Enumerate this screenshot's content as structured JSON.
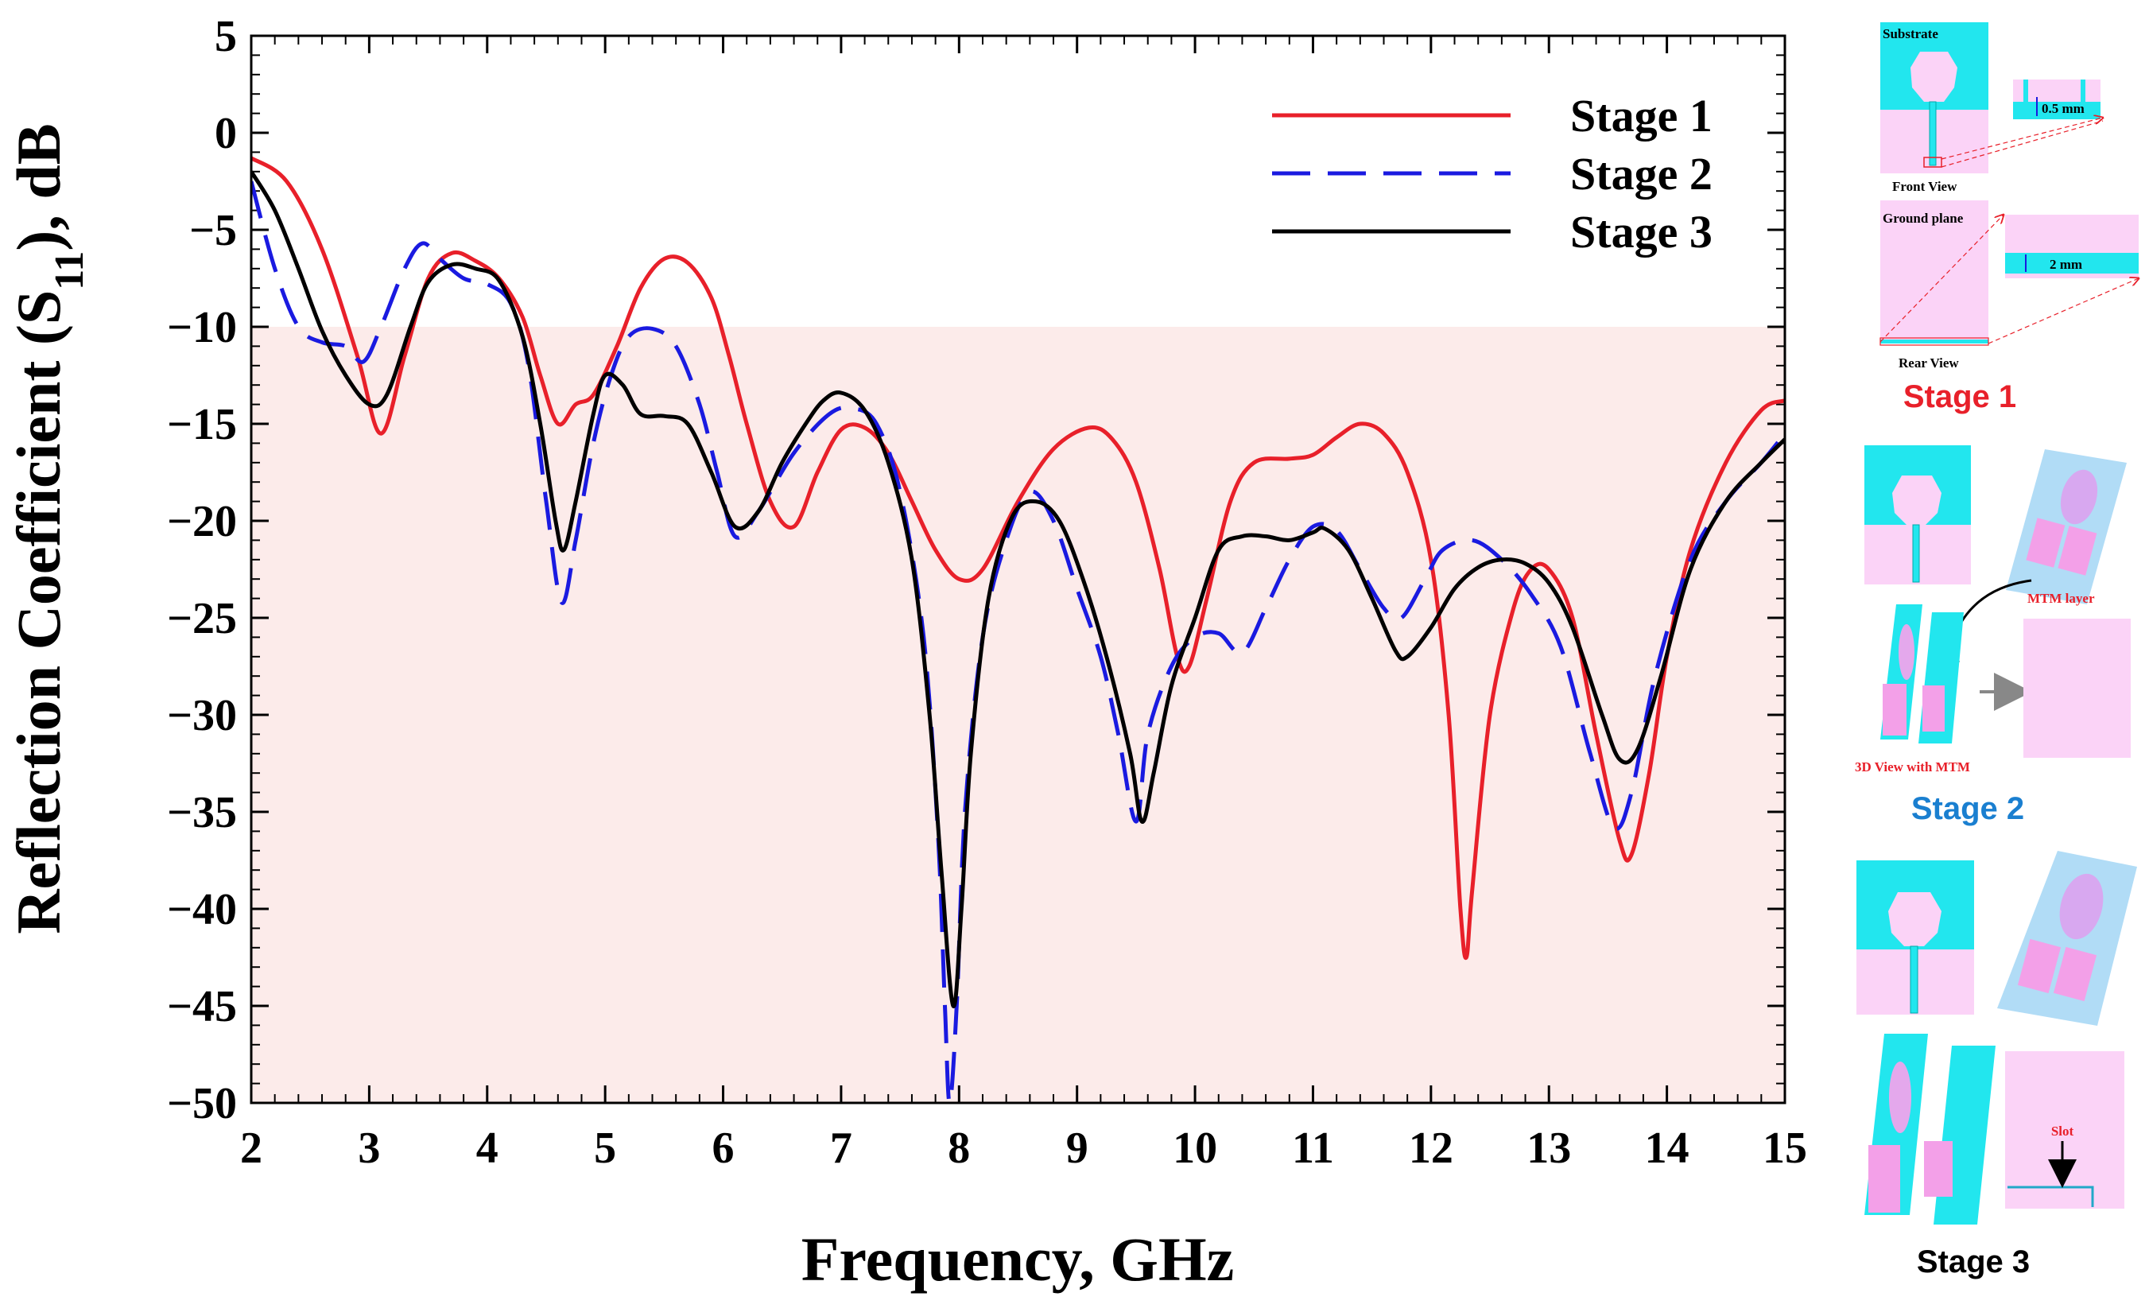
{
  "colors": {
    "stage1": "#e8202a",
    "stage2": "#1a1ae0",
    "stage3": "#000000",
    "shade": "#fcebea",
    "cyan": "#22e6ee",
    "pink": "#fbd3f7",
    "stage1_label": "#e8202a",
    "stage2_label": "#1a7fd0",
    "stage3_label": "#000000"
  },
  "chart_data": {
    "type": "line",
    "xlabel": "Frequency, GHz",
    "ylabel_main": "Reflection Coefficient (S",
    "ylabel_sub": "11",
    "ylabel_tail": "), dB",
    "xlim": [
      2,
      15
    ],
    "ylim": [
      -50,
      5
    ],
    "xticks": [
      "2",
      "3",
      "4",
      "5",
      "6",
      "7",
      "8",
      "9",
      "10",
      "11",
      "12",
      "13",
      "14",
      "15"
    ],
    "yticks": [
      "5",
      "0",
      "−5",
      "−10",
      "−15",
      "−20",
      "−25",
      "−30",
      "−35",
      "−40",
      "−45",
      "−50"
    ],
    "threshold": -10,
    "legend_position": "top-right",
    "series": [
      {
        "name": "Stage 1",
        "style": "solid",
        "points": [
          [
            2,
            -1.3
          ],
          [
            2.3,
            -2.5
          ],
          [
            2.6,
            -6
          ],
          [
            2.9,
            -11.5
          ],
          [
            3.1,
            -15.5
          ],
          [
            3.3,
            -11.5
          ],
          [
            3.5,
            -7.5
          ],
          [
            3.7,
            -6.2
          ],
          [
            3.9,
            -6.6
          ],
          [
            4.1,
            -7.5
          ],
          [
            4.3,
            -9.5
          ],
          [
            4.45,
            -12.5
          ],
          [
            4.6,
            -15
          ],
          [
            4.75,
            -14
          ],
          [
            4.9,
            -13.5
          ],
          [
            5.1,
            -11
          ],
          [
            5.3,
            -8
          ],
          [
            5.5,
            -6.5
          ],
          [
            5.7,
            -6.7
          ],
          [
            5.9,
            -8.5
          ],
          [
            6.05,
            -11.5
          ],
          [
            6.2,
            -15
          ],
          [
            6.4,
            -19
          ],
          [
            6.6,
            -20.3
          ],
          [
            6.8,
            -17.5
          ],
          [
            7.0,
            -15.3
          ],
          [
            7.2,
            -15.2
          ],
          [
            7.4,
            -16.5
          ],
          [
            7.6,
            -19
          ],
          [
            7.8,
            -21.5
          ],
          [
            8.0,
            -23
          ],
          [
            8.2,
            -22.5
          ],
          [
            8.5,
            -19
          ],
          [
            8.8,
            -16.3
          ],
          [
            9.1,
            -15.2
          ],
          [
            9.3,
            -15.8
          ],
          [
            9.5,
            -18
          ],
          [
            9.7,
            -22.5
          ],
          [
            9.85,
            -27
          ],
          [
            9.95,
            -27.5
          ],
          [
            10.1,
            -24
          ],
          [
            10.3,
            -19
          ],
          [
            10.5,
            -17
          ],
          [
            10.8,
            -16.8
          ],
          [
            11.0,
            -16.6
          ],
          [
            11.2,
            -15.7
          ],
          [
            11.4,
            -15
          ],
          [
            11.6,
            -15.5
          ],
          [
            11.8,
            -17.5
          ],
          [
            12.0,
            -22
          ],
          [
            12.15,
            -30
          ],
          [
            12.25,
            -40
          ],
          [
            12.3,
            -42.5
          ],
          [
            12.35,
            -39
          ],
          [
            12.5,
            -30
          ],
          [
            12.7,
            -24.5
          ],
          [
            12.85,
            -22.5
          ],
          [
            13.0,
            -22.5
          ],
          [
            13.2,
            -25
          ],
          [
            13.4,
            -31
          ],
          [
            13.6,
            -36.5
          ],
          [
            13.7,
            -37.2
          ],
          [
            13.85,
            -33
          ],
          [
            14.0,
            -27
          ],
          [
            14.2,
            -21.5
          ],
          [
            14.5,
            -17
          ],
          [
            14.8,
            -14.3
          ],
          [
            15,
            -13.8
          ]
        ]
      },
      {
        "name": "Stage 2",
        "style": "dashed",
        "points": [
          [
            2,
            -2.5
          ],
          [
            2.2,
            -7
          ],
          [
            2.4,
            -10
          ],
          [
            2.6,
            -10.8
          ],
          [
            2.8,
            -11
          ],
          [
            2.95,
            -11.8
          ],
          [
            3.1,
            -10
          ],
          [
            3.3,
            -7
          ],
          [
            3.45,
            -5.7
          ],
          [
            3.6,
            -6.5
          ],
          [
            3.8,
            -7.5
          ],
          [
            4.0,
            -7.8
          ],
          [
            4.2,
            -8.8
          ],
          [
            4.35,
            -12
          ],
          [
            4.5,
            -19
          ],
          [
            4.63,
            -24.2
          ],
          [
            4.75,
            -21
          ],
          [
            4.9,
            -16
          ],
          [
            5.05,
            -12.5
          ],
          [
            5.2,
            -10.5
          ],
          [
            5.4,
            -10.1
          ],
          [
            5.6,
            -11
          ],
          [
            5.8,
            -14
          ],
          [
            5.95,
            -17.5
          ],
          [
            6.1,
            -20.8
          ],
          [
            6.3,
            -19.5
          ],
          [
            6.6,
            -16.5
          ],
          [
            6.9,
            -14.5
          ],
          [
            7.1,
            -14.2
          ],
          [
            7.3,
            -15
          ],
          [
            7.5,
            -18.5
          ],
          [
            7.7,
            -26
          ],
          [
            7.82,
            -36
          ],
          [
            7.88,
            -45
          ],
          [
            7.92,
            -50
          ],
          [
            7.98,
            -45
          ],
          [
            8.05,
            -35
          ],
          [
            8.2,
            -26
          ],
          [
            8.4,
            -21
          ],
          [
            8.6,
            -18.5
          ],
          [
            8.8,
            -20
          ],
          [
            9.0,
            -23.5
          ],
          [
            9.2,
            -27
          ],
          [
            9.35,
            -31
          ],
          [
            9.5,
            -35.5
          ],
          [
            9.6,
            -31
          ],
          [
            9.8,
            -27.5
          ],
          [
            10.0,
            -26
          ],
          [
            10.2,
            -25.8
          ],
          [
            10.4,
            -26.8
          ],
          [
            10.6,
            -24.5
          ],
          [
            10.8,
            -22
          ],
          [
            11.0,
            -20.3
          ],
          [
            11.2,
            -20.5
          ],
          [
            11.4,
            -22.5
          ],
          [
            11.6,
            -24.5
          ],
          [
            11.75,
            -25
          ],
          [
            11.95,
            -23
          ],
          [
            12.1,
            -21.5
          ],
          [
            12.35,
            -21
          ],
          [
            12.6,
            -22
          ],
          [
            12.85,
            -23.8
          ],
          [
            13.1,
            -26.5
          ],
          [
            13.35,
            -32
          ],
          [
            13.55,
            -35.8
          ],
          [
            13.7,
            -34
          ],
          [
            13.9,
            -28
          ],
          [
            14.2,
            -22
          ],
          [
            14.5,
            -19
          ],
          [
            14.8,
            -17
          ],
          [
            15,
            -15.5
          ]
        ]
      },
      {
        "name": "Stage 3",
        "style": "solid",
        "points": [
          [
            2,
            -2
          ],
          [
            2.2,
            -4
          ],
          [
            2.4,
            -7
          ],
          [
            2.6,
            -10.2
          ],
          [
            2.8,
            -12.5
          ],
          [
            3.0,
            -14
          ],
          [
            3.15,
            -13.5
          ],
          [
            3.35,
            -10
          ],
          [
            3.5,
            -7.7
          ],
          [
            3.7,
            -6.8
          ],
          [
            3.9,
            -7
          ],
          [
            4.1,
            -7.6
          ],
          [
            4.3,
            -10.5
          ],
          [
            4.45,
            -15
          ],
          [
            4.58,
            -20
          ],
          [
            4.65,
            -21.5
          ],
          [
            4.75,
            -19
          ],
          [
            4.9,
            -14.5
          ],
          [
            5.0,
            -12.5
          ],
          [
            5.15,
            -13
          ],
          [
            5.3,
            -14.5
          ],
          [
            5.5,
            -14.6
          ],
          [
            5.7,
            -15
          ],
          [
            5.9,
            -17.5
          ],
          [
            6.1,
            -20.3
          ],
          [
            6.3,
            -19.5
          ],
          [
            6.5,
            -17
          ],
          [
            6.7,
            -15
          ],
          [
            6.85,
            -13.8
          ],
          [
            7.0,
            -13.4
          ],
          [
            7.2,
            -14.3
          ],
          [
            7.4,
            -17
          ],
          [
            7.6,
            -22
          ],
          [
            7.75,
            -30
          ],
          [
            7.85,
            -38
          ],
          [
            7.95,
            -45
          ],
          [
            8.02,
            -40
          ],
          [
            8.1,
            -32
          ],
          [
            8.25,
            -24
          ],
          [
            8.45,
            -19.8
          ],
          [
            8.65,
            -19
          ],
          [
            8.85,
            -20
          ],
          [
            9.05,
            -23
          ],
          [
            9.25,
            -27
          ],
          [
            9.45,
            -32
          ],
          [
            9.55,
            -35.5
          ],
          [
            9.65,
            -33
          ],
          [
            9.8,
            -28.5
          ],
          [
            10.0,
            -25
          ],
          [
            10.2,
            -21.5
          ],
          [
            10.4,
            -20.8
          ],
          [
            10.6,
            -20.8
          ],
          [
            10.8,
            -21
          ],
          [
            11.0,
            -20.6
          ],
          [
            11.1,
            -20.4
          ],
          [
            11.3,
            -21.5
          ],
          [
            11.5,
            -24
          ],
          [
            11.7,
            -26.7
          ],
          [
            11.8,
            -27
          ],
          [
            12.0,
            -25.5
          ],
          [
            12.2,
            -23.5
          ],
          [
            12.4,
            -22.4
          ],
          [
            12.6,
            -22
          ],
          [
            12.8,
            -22.2
          ],
          [
            13.0,
            -23.2
          ],
          [
            13.2,
            -25.5
          ],
          [
            13.45,
            -30
          ],
          [
            13.6,
            -32.3
          ],
          [
            13.75,
            -31.8
          ],
          [
            13.95,
            -28
          ],
          [
            14.2,
            -22.5
          ],
          [
            14.5,
            -19
          ],
          [
            14.8,
            -17
          ],
          [
            15,
            -15.8
          ]
        ]
      }
    ]
  },
  "inset": {
    "stage1": {
      "substrate_label": "Substrate",
      "front_view_label": "Front View",
      "dim1_label": "0.5 mm",
      "ground_label": "Ground plane",
      "rear_view_label": "Rear View",
      "dim2_label": "2 mm",
      "title": "Stage 1"
    },
    "stage2": {
      "mtm_layer_label": "MTM layer",
      "view3d_label": "3D View with MTM",
      "title": "Stage 2"
    },
    "stage3": {
      "slot_label": "Slot",
      "title": "Stage 3"
    }
  }
}
